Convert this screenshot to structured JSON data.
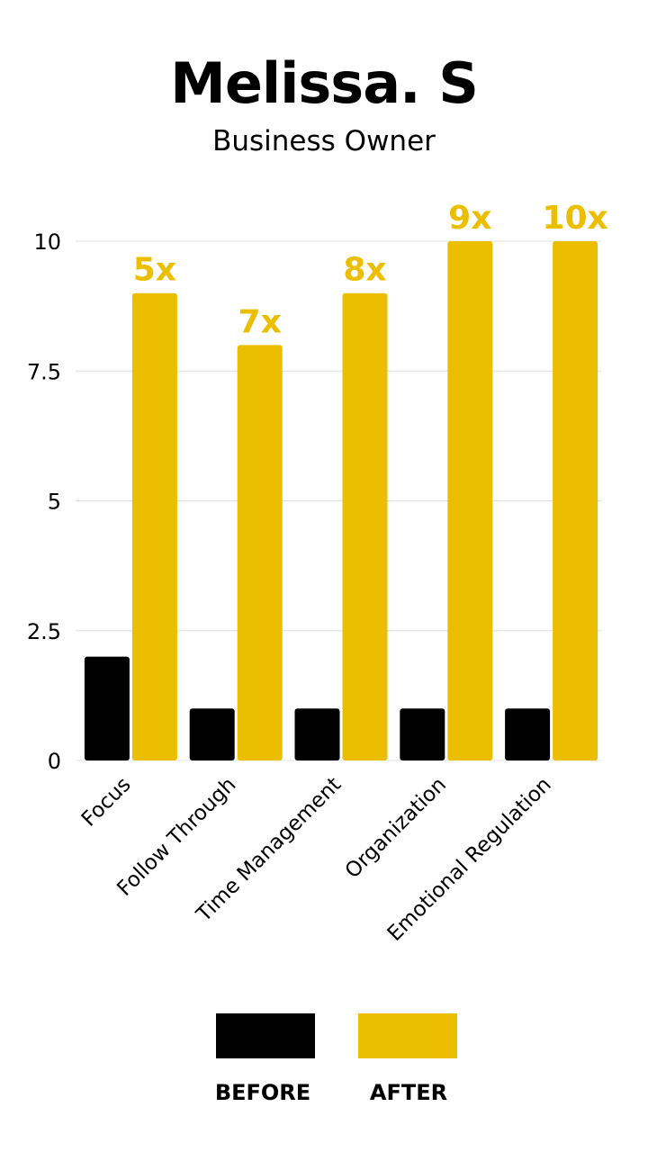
{
  "header": {
    "title": "Melissa. S",
    "subtitle": "Business Owner"
  },
  "chart_data": {
    "type": "bar",
    "categories": [
      "Focus",
      "Follow Through",
      "Time Management",
      "Organization",
      "Emotional Regulation"
    ],
    "series": [
      {
        "name": "BEFORE",
        "values": [
          2,
          1,
          1,
          1,
          1
        ],
        "color": "#000000"
      },
      {
        "name": "AFTER",
        "values": [
          9,
          8,
          9,
          10,
          10
        ],
        "color": "#EBBF00"
      }
    ],
    "annotations": [
      "5x",
      "7x",
      "8x",
      "9x",
      "10x"
    ],
    "yticks": [
      "0",
      "2.5",
      "5",
      "7.5",
      "10"
    ],
    "ylim": [
      0,
      10
    ],
    "grid": true,
    "legend_position": "bottom"
  },
  "legend": {
    "before_label": "BEFORE",
    "after_label": "AFTER"
  },
  "colors": {
    "before": "#000000",
    "after": "#EBBF00",
    "grid": "#dddddd"
  }
}
